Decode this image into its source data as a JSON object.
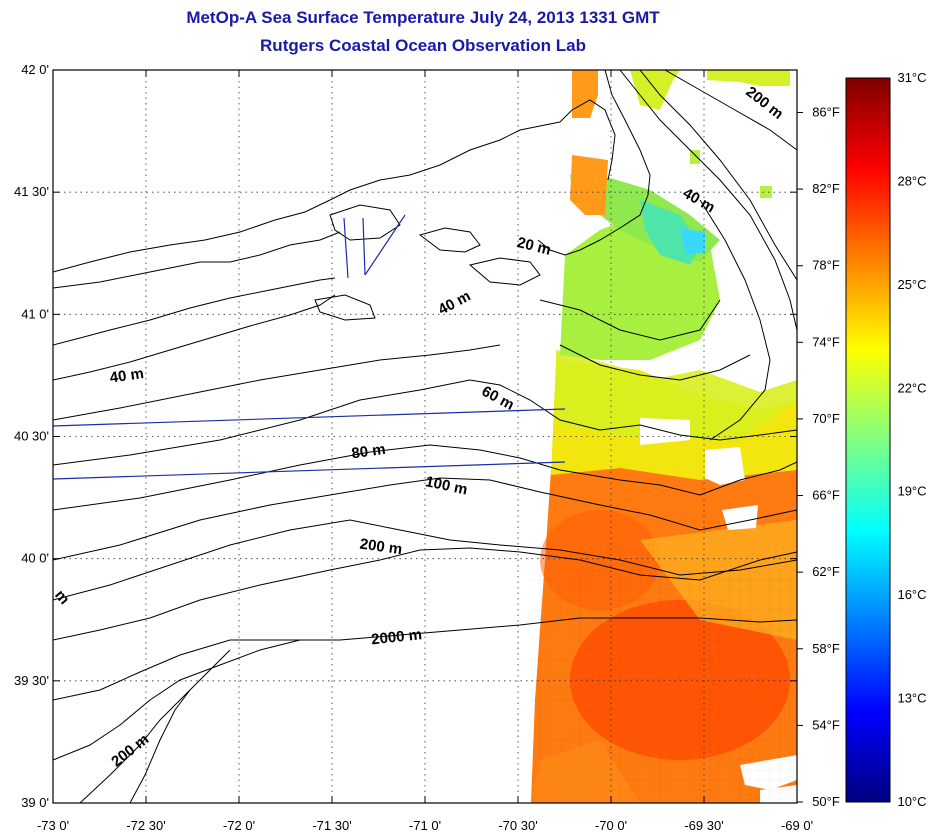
{
  "title": "MetOp-A Sea Surface Temperature July 24, 2013 1331 GMT",
  "subtitle": "Rutgers Coastal Ocean Observation Lab",
  "map": {
    "lon_range": [
      -73,
      -69
    ],
    "lat_range": [
      39,
      42
    ],
    "lon_ticks": [
      {
        "value": -73,
        "label": "-73 0'"
      },
      {
        "value": -72.5,
        "label": "-72 30'"
      },
      {
        "value": -72,
        "label": "-72 0'"
      },
      {
        "value": -71.5,
        "label": "-71 30'"
      },
      {
        "value": -71,
        "label": "-71 0'"
      },
      {
        "value": -70.5,
        "label": "-70 30'"
      },
      {
        "value": -70,
        "label": "-70 0'"
      },
      {
        "value": -69.5,
        "label": "-69 30'"
      },
      {
        "value": -69,
        "label": "-69 0'"
      }
    ],
    "lat_ticks": [
      {
        "value": 42,
        "label": "42 0'"
      },
      {
        "value": 41.5,
        "label": "41 30'"
      },
      {
        "value": 41,
        "label": "41 0'"
      },
      {
        "value": 40.5,
        "label": "40 30'"
      },
      {
        "value": 40,
        "label": "40 0'"
      },
      {
        "value": 39.5,
        "label": "39 30'"
      },
      {
        "value": 39,
        "label": "39 0'"
      }
    ],
    "fahrenheit_ticks": [
      "86°F",
      "82°F",
      "78°F",
      "74°F",
      "70°F",
      "66°F",
      "62°F",
      "58°F",
      "54°F",
      "50°F"
    ],
    "grid": "dotted"
  },
  "contour_labels": [
    {
      "text": "200 m",
      "lon": -69.19,
      "lat": 41.85,
      "angle": 38
    },
    {
      "text": "40 m",
      "lon": -69.54,
      "lat": 41.45,
      "angle": 30
    },
    {
      "text": "20 m",
      "lon": -70.42,
      "lat": 41.26,
      "angle": 14
    },
    {
      "text": "40 m",
      "lon": -70.83,
      "lat": 41.03,
      "angle": -28
    },
    {
      "text": "40 m",
      "lon": -72.6,
      "lat": 40.73,
      "angle": -8
    },
    {
      "text": "60 m",
      "lon": -70.62,
      "lat": 40.64,
      "angle": 28
    },
    {
      "text": "80 m",
      "lon": -71.3,
      "lat": 40.42,
      "angle": -8
    },
    {
      "text": "100 m",
      "lon": -70.89,
      "lat": 40.28,
      "angle": 12
    },
    {
      "text": "200 m",
      "lon": -71.24,
      "lat": 40.03,
      "angle": 8
    },
    {
      "text": "2000 m",
      "lon": -71.15,
      "lat": 39.66,
      "angle": -6
    },
    {
      "text": "200 m",
      "lon": -72.57,
      "lat": 39.2,
      "angle": -38
    },
    {
      "text": "m",
      "lon": -72.97,
      "lat": 39.83,
      "angle": 50
    }
  ],
  "colorbar": {
    "min_c": 10,
    "max_c": 31,
    "celsius_ticks": [
      {
        "value": 31,
        "label": "31°C"
      },
      {
        "value": 28,
        "label": "28°C"
      },
      {
        "value": 25,
        "label": "25°C"
      },
      {
        "value": 22,
        "label": "22°C"
      },
      {
        "value": 19,
        "label": "19°C"
      },
      {
        "value": 16,
        "label": "16°C"
      },
      {
        "value": 13,
        "label": "13°C"
      },
      {
        "value": 10,
        "label": "10°C"
      }
    ],
    "stops": [
      "#00007f",
      "#0000ff",
      "#0080ff",
      "#00ffff",
      "#80ff80",
      "#ffff00",
      "#ff8000",
      "#ff0000",
      "#7f0000"
    ]
  },
  "colors": {
    "title": "#1a1aa8",
    "contour": "#000000",
    "track_lines": "#1b2ea6",
    "warm_sst": "#ff7a10",
    "cool_sst": "#9fe84a"
  }
}
